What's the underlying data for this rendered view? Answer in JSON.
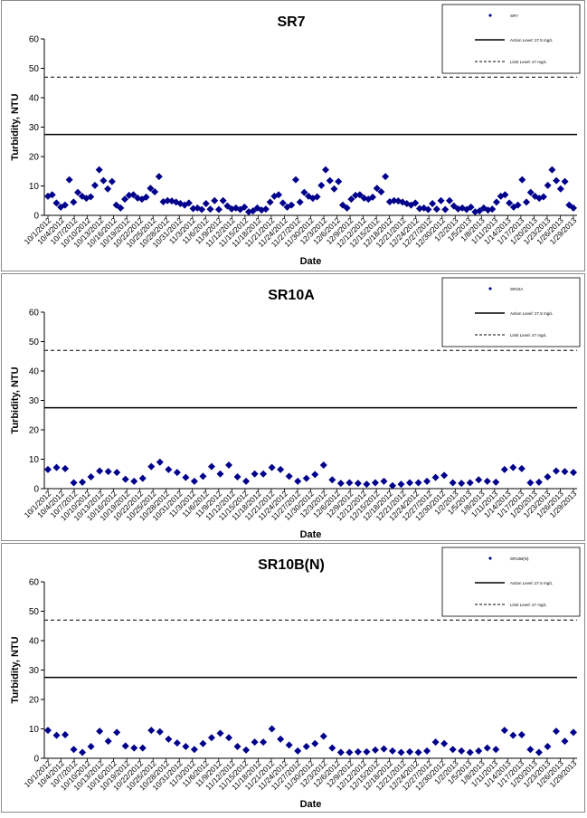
{
  "chart_data": [
    {
      "type": "scatter",
      "title": "SR7",
      "xlabel": "Date",
      "ylabel": "Turbidity, NTU",
      "ylim": [
        0,
        60
      ],
      "yticks": [
        0,
        10,
        20,
        30,
        40,
        50,
        60
      ],
      "xtick_labels": [
        "10/1/2012",
        "10/4/2012",
        "10/7/2012",
        "10/10/2012",
        "10/13/2012",
        "10/16/2012",
        "10/19/2012",
        "10/22/2012",
        "10/25/2012",
        "10/28/2012",
        "10/31/2012",
        "11/3/2012",
        "11/6/2012",
        "11/9/2012",
        "11/12/2012",
        "11/15/2012",
        "11/18/2012",
        "11/21/2012",
        "11/24/2012",
        "11/27/2012",
        "11/30/2012",
        "12/3/2012",
        "12/6/2012",
        "12/9/2012",
        "12/12/2012",
        "12/15/2012",
        "12/18/2012",
        "12/21/2012",
        "12/24/2012",
        "12/27/2012",
        "12/30/2012",
        "1/2/2013",
        "1/5/2013",
        "1/8/2013",
        "1/11/2013",
        "1/14/2013",
        "1/17/2013",
        "1/20/2013",
        "1/23/2013",
        "1/26/2013",
        "1/29/2013"
      ],
      "legend": [
        {
          "label": "SR7",
          "marker": "diamond"
        },
        {
          "label": "Action Level: 27.5 mg/L",
          "style": "solid"
        },
        {
          "label": "Limit Level: 47 mg/L",
          "style": "dashed"
        }
      ],
      "legend_position": "top-right",
      "action_level": 27.5,
      "limit_level": 47,
      "marker_color": "#00008B",
      "series": [
        {
          "name": "SR7",
          "x": [
            0,
            1,
            2,
            3,
            4,
            5,
            6,
            7,
            8,
            9,
            10,
            11,
            12,
            13,
            14,
            15,
            16,
            17,
            18,
            19,
            20,
            21,
            22,
            23,
            24,
            25,
            26,
            27,
            28,
            29,
            30,
            31,
            32,
            33,
            34,
            35,
            36,
            37,
            38,
            39,
            40,
            41,
            42,
            43,
            44,
            45,
            46,
            47,
            48,
            49,
            50,
            51,
            52,
            53,
            54,
            55,
            56,
            57,
            58,
            59,
            60,
            61,
            62,
            63,
            64,
            65,
            66,
            67,
            68,
            69,
            70,
            71,
            72,
            73,
            74,
            75,
            76,
            77,
            78,
            79,
            80,
            81,
            82,
            83,
            84,
            85,
            86,
            87,
            88,
            89,
            90,
            91,
            92,
            93,
            94,
            95,
            96,
            97,
            98,
            99,
            100,
            101,
            102,
            103,
            104,
            105,
            106,
            107,
            108,
            109,
            110,
            111,
            112,
            113,
            114,
            115,
            116,
            117,
            118,
            119,
            120,
            121,
            122,
            123
          ],
          "values": [
            6.5,
            7.0,
            4.2,
            2.8,
            3.5,
            12.1,
            4.5,
            7.8,
            6.5,
            5.8,
            6.3,
            10.2,
            15.5,
            11.8,
            9.0,
            11.5,
            3.5,
            2.5,
            5.5,
            6.8,
            7.0,
            5.9,
            5.5,
            6.2,
            9.2,
            8.0,
            13.2,
            4.6,
            5.0,
            4.9,
            4.5,
            4.0,
            3.5,
            4.2,
            2.3,
            2.5,
            2.0,
            4.0,
            2.1,
            5.0,
            2.0,
            5.0,
            3.2,
            2.2,
            2.5,
            2.0,
            2.8,
            1.2,
            1.5,
            2.5,
            1.8,
            2.1,
            4.5,
            6.5,
            7.0,
            4.2,
            2.8,
            3.5,
            12.1,
            4.5,
            7.8,
            6.5,
            5.8,
            6.3,
            10.2,
            15.5,
            11.8,
            9.0,
            11.5,
            3.5,
            2.5,
            5.5,
            6.8,
            7.0,
            5.9,
            5.5,
            6.2,
            9.2,
            8.0,
            13.2,
            4.6,
            5.0,
            4.9,
            4.5,
            4.0,
            3.5,
            4.2,
            2.3,
            2.5,
            2.0,
            4.0,
            2.1,
            5.0,
            2.0,
            5.0,
            3.2,
            2.2,
            2.5,
            2.0,
            2.8,
            1.2,
            1.5,
            2.5,
            1.8,
            2.1,
            4.5,
            6.5,
            7.0,
            4.2,
            2.8,
            3.5,
            12.1,
            4.5,
            7.8,
            6.5,
            5.8,
            6.3,
            10.2,
            15.5,
            11.8,
            9.0,
            11.5,
            3.5,
            2.5
          ]
        }
      ]
    },
    {
      "type": "scatter",
      "title": "SR10A",
      "xlabel": "Date",
      "ylabel": "Turbidity, NTU",
      "ylim": [
        0,
        60
      ],
      "yticks": [
        0,
        10,
        20,
        30,
        40,
        50,
        60
      ],
      "xtick_labels": [
        "10/1/2012",
        "10/4/2012",
        "10/7/2012",
        "10/10/2012",
        "10/13/2012",
        "10/16/2012",
        "10/19/2012",
        "10/22/2012",
        "10/25/2012",
        "10/28/2012",
        "10/31/2012",
        "11/3/2012",
        "11/6/2012",
        "11/9/2012",
        "11/12/2012",
        "11/15/2012",
        "11/18/2012",
        "11/21/2012",
        "11/24/2012",
        "11/27/2012",
        "11/30/2012",
        "12/3/2012",
        "12/6/2012",
        "12/9/2012",
        "12/12/2012",
        "12/15/2012",
        "12/18/2012",
        "12/21/2012",
        "12/24/2012",
        "12/27/2012",
        "12/30/2012",
        "1/2/2013",
        "1/5/2013",
        "1/8/2013",
        "1/11/2013",
        "1/14/2013",
        "1/17/2013",
        "1/20/2013",
        "1/23/2013",
        "1/26/2013",
        "1/29/2013"
      ],
      "legend": [
        {
          "label": "SR10A",
          "marker": "diamond"
        },
        {
          "label": "Action Level: 27.5 mg/L",
          "style": "solid"
        },
        {
          "label": "Limit Level: 47 mg/L",
          "style": "dashed"
        }
      ],
      "legend_position": "top-right",
      "action_level": 27.5,
      "limit_level": 47,
      "marker_color": "#00008B",
      "series": [
        {
          "name": "SR10A",
          "x": [
            0,
            2,
            4,
            6,
            8,
            10,
            12,
            14,
            16,
            18,
            20,
            22,
            24,
            26,
            28,
            30,
            32,
            34,
            36,
            38,
            40,
            42,
            44,
            46,
            48,
            50,
            52,
            54,
            56,
            58,
            60,
            62,
            64,
            66,
            68,
            70,
            72,
            74,
            76,
            78,
            80,
            82,
            84,
            86,
            88,
            90,
            92,
            94,
            96,
            98,
            100,
            102,
            104,
            106,
            108,
            110,
            112,
            114,
            116,
            118,
            120,
            122
          ],
          "values": [
            6.5,
            7.2,
            6.8,
            2.0,
            2.2,
            4.0,
            6.0,
            5.8,
            5.5,
            3.2,
            2.5,
            3.5,
            7.5,
            9.0,
            6.5,
            5.5,
            3.8,
            2.5,
            4.2,
            7.5,
            5.0,
            8.0,
            4.0,
            2.5,
            5.0,
            5.0,
            7.2,
            6.5,
            4.2,
            2.5,
            3.5,
            4.8,
            8.0,
            3.0,
            1.8,
            2.0,
            1.8,
            1.5,
            2.0,
            2.5,
            1.0,
            1.5,
            2.0,
            2.0,
            2.5,
            3.8,
            4.5,
            2.0,
            1.8,
            2.0,
            3.0,
            2.5,
            2.2,
            6.5,
            7.2,
            6.8,
            2.0,
            2.2,
            4.0,
            6.0,
            5.8,
            5.5
          ]
        }
      ]
    },
    {
      "type": "scatter",
      "title": "SR10B(N)",
      "xlabel": "Date",
      "ylabel": "Turbidity, NTU",
      "ylim": [
        0,
        60
      ],
      "yticks": [
        0,
        10,
        20,
        30,
        40,
        50,
        60
      ],
      "xtick_labels": [
        "10/1/2012",
        "10/4/2012",
        "10/7/2012",
        "10/10/2012",
        "10/13/2012",
        "10/16/2012",
        "10/19/2012",
        "10/22/2012",
        "10/25/2012",
        "10/28/2012",
        "10/31/2012",
        "11/3/2012",
        "11/6/2012",
        "11/9/2012",
        "11/12/2012",
        "11/15/2012",
        "11/18/2012",
        "11/21/2012",
        "11/24/2012",
        "11/27/2012",
        "11/30/2012",
        "12/3/2012",
        "12/6/2012",
        "12/9/2012",
        "12/12/2012",
        "12/15/2012",
        "12/18/2012",
        "12/21/2012",
        "12/24/2012",
        "12/27/2012",
        "12/30/2012",
        "1/2/2013",
        "1/5/2013",
        "1/8/2013",
        "1/11/2013",
        "1/14/2013",
        "1/17/2013",
        "1/20/2013",
        "1/23/2013",
        "1/26/2013",
        "1/29/2013"
      ],
      "legend": [
        {
          "label": "SR10B(N)",
          "marker": "diamond"
        },
        {
          "label": "Action Level: 27.5 mg/L",
          "style": "solid"
        },
        {
          "label": "Limit Level: 47 mg/L",
          "style": "dashed"
        }
      ],
      "legend_position": "top-right",
      "action_level": 27.5,
      "limit_level": 47,
      "marker_color": "#00008B",
      "series": [
        {
          "name": "SR10B(N)",
          "x": [
            0,
            2,
            4,
            6,
            8,
            10,
            12,
            14,
            16,
            18,
            20,
            22,
            24,
            26,
            28,
            30,
            32,
            34,
            36,
            38,
            40,
            42,
            44,
            46,
            48,
            50,
            52,
            54,
            56,
            58,
            60,
            62,
            64,
            66,
            68,
            70,
            72,
            74,
            76,
            78,
            80,
            82,
            84,
            86,
            88,
            90,
            92,
            94,
            96,
            98,
            100,
            102,
            104,
            106,
            108,
            110,
            112,
            114,
            116,
            118,
            120,
            122
          ],
          "values": [
            9.5,
            7.8,
            8.0,
            3.0,
            2.0,
            4.0,
            9.2,
            5.8,
            8.8,
            4.2,
            3.5,
            3.5,
            9.5,
            9.0,
            6.5,
            5.2,
            4.0,
            3.0,
            5.0,
            7.0,
            8.5,
            7.0,
            4.0,
            2.8,
            5.5,
            5.5,
            10.0,
            6.5,
            4.5,
            2.5,
            4.0,
            5.0,
            7.5,
            3.5,
            2.0,
            2.0,
            2.2,
            2.2,
            2.8,
            3.2,
            2.5,
            2.0,
            2.2,
            2.0,
            2.5,
            5.5,
            5.0,
            3.0,
            2.5,
            2.0,
            2.5,
            3.5,
            3.0,
            9.5,
            7.8,
            8.0,
            3.0,
            2.0,
            4.0,
            9.2,
            5.8,
            8.8
          ]
        }
      ]
    }
  ]
}
